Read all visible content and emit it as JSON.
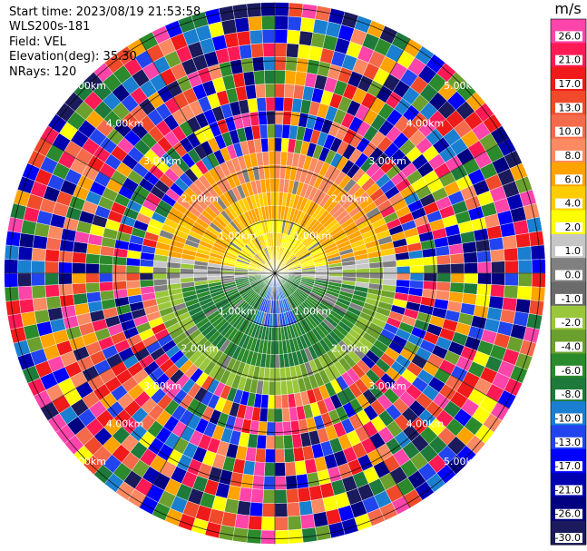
{
  "header": {
    "start_time": "Start time: 2023/08/19 21:53:58",
    "instrument": "WLS200s-181",
    "field": "Field: VEL",
    "elevation": "Elevation(deg): 35.30",
    "nrays": "NRays: 120"
  },
  "chart_data": {
    "type": "heatmap",
    "projection": "polar",
    "n_rays": 120,
    "n_gates": 20,
    "range_rings_km": [
      1.0,
      2.0,
      3.0,
      4.0,
      5.0
    ],
    "ring_labels": [
      "1.00km",
      "2.00km",
      "3.00km",
      "4.00km",
      "5.00km"
    ],
    "grid": true,
    "colorbar": {
      "title": "m/s",
      "ticks": [
        "26.0",
        "21.0",
        "17.0",
        "13.0",
        "10.0",
        "8.0",
        "6.0",
        "4.0",
        "2.0",
        "1.0",
        "0.0",
        "-1.0",
        "-2.0",
        "-4.0",
        "-6.0",
        "-8.0",
        "-10.0",
        "-13.0",
        "-17.0",
        "-21.0",
        "-26.0",
        "-30.0"
      ],
      "bins": [
        {
          "range": "26.0",
          "color": "#ff44aa"
        },
        {
          "range": "21.0",
          "color": "#ff1a55"
        },
        {
          "range": "17.0",
          "color": "#f11a1a"
        },
        {
          "range": "13.0",
          "color": "#f04a2a"
        },
        {
          "range": "10.0",
          "color": "#f66a4c"
        },
        {
          "range": "8.0",
          "color": "#fb8a62"
        },
        {
          "range": "6.0",
          "color": "#ffa300"
        },
        {
          "range": "4.0",
          "color": "#ffcc00"
        },
        {
          "range": "2.0",
          "color": "#ffff00"
        },
        {
          "range": "1.0",
          "color": "#c6c6c6"
        },
        {
          "range": "0.0",
          "color": "#808080"
        },
        {
          "range": "-1.0",
          "color": "#6b6b6b"
        },
        {
          "range": "-2.0",
          "color": "#99c63a"
        },
        {
          "range": "-4.0",
          "color": "#6ca02e"
        },
        {
          "range": "-6.0",
          "color": "#2b8a2b"
        },
        {
          "range": "-8.0",
          "color": "#1e7a3a"
        },
        {
          "range": "-10.0",
          "color": "#1a7fd0"
        },
        {
          "range": "-13.0",
          "color": "#2244ee"
        },
        {
          "range": "-17.0",
          "color": "#0000ff"
        },
        {
          "range": "-21.0",
          "color": "#0000b0"
        },
        {
          "range": "-26.0",
          "color": "#000080"
        },
        {
          "range": "-30.0",
          "color": "#1a1a5c"
        }
      ]
    }
  }
}
